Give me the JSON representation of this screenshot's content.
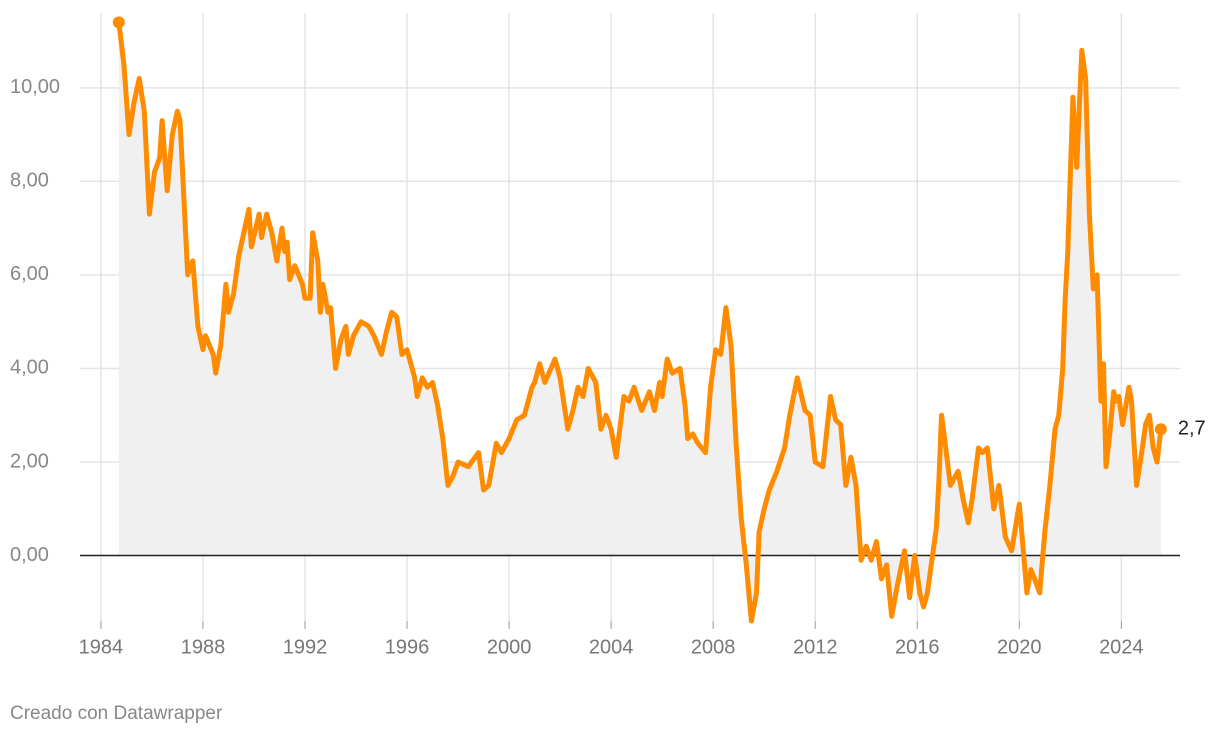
{
  "chart_data": {
    "type": "area-line",
    "x": [
      1984.7,
      1984.9,
      1985.1,
      1985.3,
      1985.5,
      1985.7,
      1985.9,
      1986.1,
      1986.3,
      1986.4,
      1986.6,
      1986.8,
      1987.0,
      1987.1,
      1987.2,
      1987.4,
      1987.6,
      1987.8,
      1988.0,
      1988.1,
      1988.4,
      1988.5,
      1988.7,
      1988.9,
      1989.0,
      1989.2,
      1989.4,
      1989.6,
      1989.8,
      1989.9,
      1990.2,
      1990.3,
      1990.5,
      1990.7,
      1990.9,
      1991.1,
      1991.2,
      1991.3,
      1991.4,
      1991.6,
      1991.9,
      1992.0,
      1992.2,
      1992.3,
      1992.5,
      1992.6,
      1992.7,
      1992.9,
      1993.0,
      1993.2,
      1993.4,
      1993.6,
      1993.7,
      1993.9,
      1994.2,
      1994.5,
      1994.7,
      1995.0,
      1995.2,
      1995.4,
      1995.6,
      1995.8,
      1996.0,
      1996.3,
      1996.4,
      1996.6,
      1996.8,
      1997.0,
      1997.2,
      1997.4,
      1997.6,
      1997.8,
      1998.0,
      1998.4,
      1998.8,
      1999.0,
      1999.2,
      1999.5,
      1999.7,
      2000.0,
      2000.3,
      2000.6,
      2000.9,
      2001.0,
      2001.2,
      2001.4,
      2001.8,
      2002.0,
      2002.3,
      2002.5,
      2002.7,
      2002.9,
      2003.1,
      2003.4,
      2003.6,
      2003.8,
      2004.0,
      2004.2,
      2004.5,
      2004.7,
      2004.9,
      2005.2,
      2005.5,
      2005.7,
      2005.9,
      2006.0,
      2006.2,
      2006.4,
      2006.7,
      2006.9,
      2007.0,
      2007.2,
      2007.4,
      2007.7,
      2007.9,
      2008.1,
      2008.3,
      2008.5,
      2008.7,
      2008.9,
      2009.1,
      2009.3,
      2009.5,
      2009.7,
      2009.8,
      2010.0,
      2010.2,
      2010.5,
      2010.8,
      2011.0,
      2011.3,
      2011.6,
      2011.8,
      2012.0,
      2012.3,
      2012.6,
      2012.8,
      2013.0,
      2013.2,
      2013.4,
      2013.6,
      2013.8,
      2014.0,
      2014.2,
      2014.4,
      2014.6,
      2014.8,
      2015.0,
      2015.2,
      2015.5,
      2015.7,
      2015.9,
      2016.1,
      2016.25,
      2016.4,
      2016.75,
      2016.85,
      2016.95,
      2017.05,
      2017.3,
      2017.6,
      2017.8,
      2018.0,
      2018.15,
      2018.4,
      2018.55,
      2018.75,
      2019.0,
      2019.2,
      2019.45,
      2019.7,
      2020.0,
      2020.3,
      2020.45,
      2020.6,
      2020.8,
      2021.0,
      2021.2,
      2021.4,
      2021.55,
      2021.7,
      2021.8,
      2021.9,
      2022.1,
      2022.25,
      2022.45,
      2022.6,
      2022.75,
      2022.9,
      2023.05,
      2023.2,
      2023.3,
      2023.4,
      2023.55,
      2023.7,
      2023.8,
      2023.9,
      2024.05,
      2024.3,
      2024.4,
      2024.6,
      2024.8,
      2024.95,
      2025.1,
      2025.25,
      2025.4,
      2025.55
    ],
    "values": [
      11.4,
      10.5,
      9.0,
      9.7,
      10.2,
      9.5,
      7.3,
      8.2,
      8.5,
      9.3,
      7.8,
      9.0,
      9.5,
      9.3,
      8.2,
      6.0,
      6.3,
      4.9,
      4.4,
      4.7,
      4.3,
      3.9,
      4.5,
      5.8,
      5.2,
      5.6,
      6.4,
      6.9,
      7.4,
      6.6,
      7.3,
      6.8,
      7.3,
      6.9,
      6.3,
      7.0,
      6.5,
      6.7,
      5.9,
      6.2,
      5.8,
      5.5,
      5.5,
      6.9,
      6.3,
      5.2,
      5.8,
      5.2,
      5.3,
      4.0,
      4.6,
      4.9,
      4.3,
      4.7,
      5.0,
      4.9,
      4.7,
      4.3,
      4.8,
      5.2,
      5.1,
      4.3,
      4.4,
      3.8,
      3.4,
      3.8,
      3.6,
      3.7,
      3.2,
      2.5,
      1.5,
      1.7,
      2.0,
      1.9,
      2.2,
      1.4,
      1.5,
      2.4,
      2.2,
      2.5,
      2.9,
      3.0,
      3.6,
      3.7,
      4.1,
      3.7,
      4.2,
      3.8,
      2.7,
      3.1,
      3.6,
      3.4,
      4.0,
      3.7,
      2.7,
      3.0,
      2.7,
      2.1,
      3.4,
      3.3,
      3.6,
      3.1,
      3.5,
      3.1,
      3.7,
      3.4,
      4.2,
      3.9,
      4.0,
      3.2,
      2.5,
      2.6,
      2.4,
      2.2,
      3.6,
      4.4,
      4.3,
      5.3,
      4.5,
      2.4,
      0.8,
      -0.2,
      -1.4,
      -0.8,
      0.5,
      1.0,
      1.4,
      1.8,
      2.3,
      3.0,
      3.8,
      3.1,
      3.0,
      2.0,
      1.9,
      3.4,
      2.9,
      2.8,
      1.5,
      2.1,
      1.5,
      -0.1,
      0.2,
      -0.1,
      0.3,
      -0.5,
      -0.2,
      -1.3,
      -0.7,
      0.1,
      -0.9,
      0.0,
      -0.8,
      -1.1,
      -0.8,
      0.6,
      1.6,
      3.0,
      2.6,
      1.5,
      1.8,
      1.2,
      0.7,
      1.2,
      2.3,
      2.2,
      2.3,
      1.0,
      1.5,
      0.4,
      0.1,
      1.1,
      -0.8,
      -0.3,
      -0.5,
      -0.8,
      0.5,
      1.5,
      2.7,
      3.0,
      4.0,
      5.5,
      6.5,
      9.8,
      8.3,
      10.8,
      10.2,
      7.3,
      5.7,
      6.0,
      3.3,
      4.1,
      1.9,
      2.6,
      3.5,
      3.3,
      3.4,
      2.8,
      3.6,
      3.3,
      1.5,
      2.2,
      2.8,
      3.0,
      2.3,
      2.0,
      2.7
    ],
    "last_label": "2,7",
    "color": "#ff8c00",
    "area_color": "#f0f0f0",
    "xlim": [
      1983.18,
      2026.3
    ],
    "xticks": [
      1984,
      1988,
      1992,
      1996,
      2000,
      2004,
      2008,
      2012,
      2016,
      2020,
      2024
    ],
    "ylim": [
      -1.4,
      11.6
    ],
    "yticks": [
      {
        "value": 0,
        "label": "0,00"
      },
      {
        "value": 2,
        "label": "2,00"
      },
      {
        "value": 4,
        "label": "4,00"
      },
      {
        "value": 6,
        "label": "6,00"
      },
      {
        "value": 8,
        "label": "8,00"
      },
      {
        "value": 10,
        "label": "10,00"
      }
    ],
    "grid": true,
    "credit": "Creado con Datawrapper"
  }
}
